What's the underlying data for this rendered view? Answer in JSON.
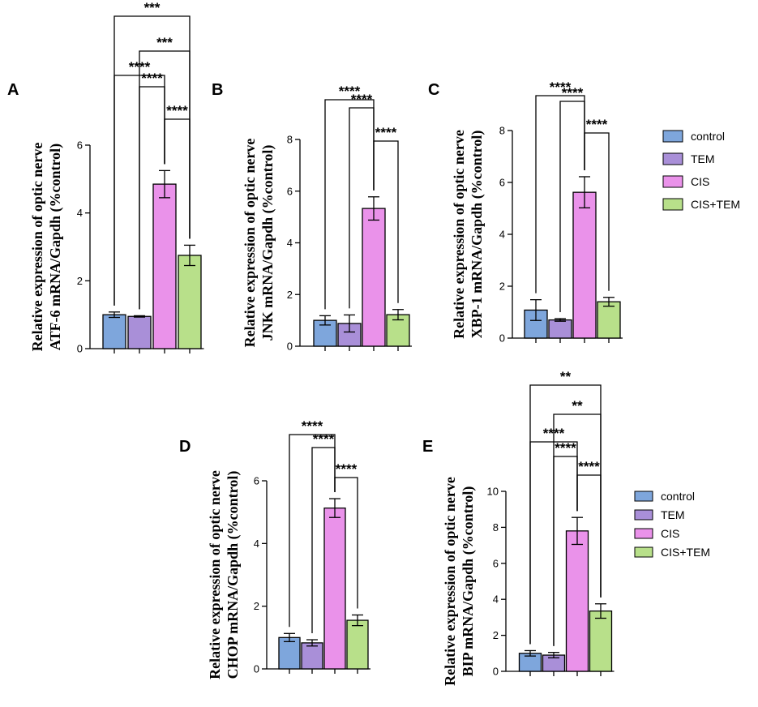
{
  "colors": {
    "control": "#7ea6dc",
    "TEM": "#a98fd8",
    "CIS": "#ea92ea",
    "CIS+TEM": "#b8e08a",
    "stroke": "#000000"
  },
  "legend_groups": [
    {
      "id": "legend-top",
      "entries": [
        "control",
        "TEM",
        "CIS",
        "CIS+TEM"
      ]
    },
    {
      "id": "legend-bottom",
      "entries": [
        "control",
        "TEM",
        "CIS",
        "CIS+TEM"
      ]
    }
  ],
  "chart_data": [
    {
      "panel": "A",
      "type": "bar",
      "categories": [
        "control",
        "TEM",
        "CIS",
        "CIS+TEM"
      ],
      "values": [
        1.0,
        0.95,
        4.85,
        2.75
      ],
      "errors": [
        0.08,
        0.02,
        0.4,
        0.3
      ],
      "ylabel_lines": [
        "Relative expression of optic nerve",
        "ATF-6 mRNA/Gapdh (%control)"
      ],
      "ylim": [
        0,
        6
      ],
      "yticks": [
        0,
        2,
        4,
        6
      ],
      "tick_labels": [
        "0",
        "2",
        "4",
        "6"
      ],
      "significance": [
        {
          "from": 2,
          "to": 3,
          "label": "****"
        },
        {
          "from": 1,
          "to": 2,
          "label": "****"
        },
        {
          "from": 0,
          "to": 2,
          "label": "****"
        },
        {
          "from": 1,
          "to": 3,
          "label": "***"
        },
        {
          "from": 0,
          "to": 3,
          "label": "***"
        }
      ]
    },
    {
      "panel": "B",
      "type": "bar",
      "categories": [
        "control",
        "TEM",
        "CIS",
        "CIS+TEM"
      ],
      "values": [
        1.0,
        0.88,
        5.33,
        1.22
      ],
      "errors": [
        0.18,
        0.33,
        0.45,
        0.2
      ],
      "ylabel_lines": [
        "Relative expression of optic nerve",
        "JNK mRNA/Gapdh (%control)"
      ],
      "ylim": [
        0,
        8
      ],
      "yticks": [
        0,
        2,
        4,
        6,
        8
      ],
      "tick_labels": [
        "0",
        "2",
        "4",
        "6",
        "8"
      ],
      "significance": [
        {
          "from": 2,
          "to": 3,
          "label": "****"
        },
        {
          "from": 1,
          "to": 2,
          "label": "****"
        },
        {
          "from": 0,
          "to": 2,
          "label": "****"
        }
      ]
    },
    {
      "panel": "C",
      "type": "bar",
      "categories": [
        "control",
        "TEM",
        "CIS",
        "CIS+TEM"
      ],
      "values": [
        1.08,
        0.7,
        5.62,
        1.4
      ],
      "errors": [
        0.4,
        0.05,
        0.6,
        0.17
      ],
      "ylabel_lines": [
        "Relative expression of optic nerve",
        "XBP-1 mRNA/Gapdh (%control)"
      ],
      "ylim": [
        0,
        8
      ],
      "yticks": [
        0,
        2,
        4,
        6,
        8
      ],
      "tick_labels": [
        "0",
        "2",
        "4",
        "6",
        "8"
      ],
      "significance": [
        {
          "from": 2,
          "to": 3,
          "label": "****"
        },
        {
          "from": 1,
          "to": 2,
          "label": "****"
        },
        {
          "from": 0,
          "to": 2,
          "label": "****"
        }
      ]
    },
    {
      "panel": "D",
      "type": "bar",
      "categories": [
        "control",
        "TEM",
        "CIS",
        "CIS+TEM"
      ],
      "values": [
        1.0,
        0.83,
        5.13,
        1.55
      ],
      "errors": [
        0.13,
        0.1,
        0.3,
        0.17
      ],
      "ylabel_lines": [
        "Relative expression of optic nerve",
        "CHOP mRNA/Gapdh (%control)"
      ],
      "ylim": [
        0,
        6
      ],
      "yticks": [
        0,
        2,
        4,
        6
      ],
      "tick_labels": [
        "0",
        "2",
        "4",
        "6"
      ],
      "significance": [
        {
          "from": 2,
          "to": 3,
          "label": "****"
        },
        {
          "from": 1,
          "to": 2,
          "label": "****"
        },
        {
          "from": 0,
          "to": 2,
          "label": "****"
        }
      ]
    },
    {
      "panel": "E",
      "type": "bar",
      "categories": [
        "control",
        "TEM",
        "CIS",
        "CIS+TEM"
      ],
      "values": [
        1.0,
        0.9,
        7.8,
        3.35
      ],
      "errors": [
        0.15,
        0.15,
        0.75,
        0.4
      ],
      "ylabel_lines": [
        "Relative expression of optic nerve",
        "BIP mRNA/Gapdh (%control)"
      ],
      "ylim": [
        0,
        10
      ],
      "yticks": [
        0,
        2,
        4,
        6,
        8,
        10
      ],
      "tick_labels": [
        "0",
        "2",
        "4",
        "6",
        "8",
        "10"
      ],
      "significance": [
        {
          "from": 2,
          "to": 3,
          "label": "****"
        },
        {
          "from": 1,
          "to": 2,
          "label": "****"
        },
        {
          "from": 0,
          "to": 2,
          "label": "****"
        },
        {
          "from": 1,
          "to": 3,
          "label": "**"
        },
        {
          "from": 0,
          "to": 3,
          "label": "**"
        }
      ]
    }
  ]
}
